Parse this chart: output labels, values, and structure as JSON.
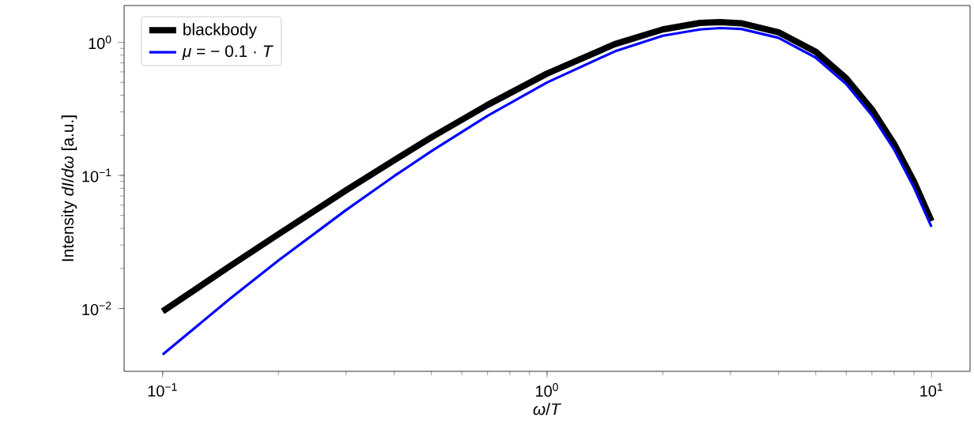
{
  "chart_data": {
    "type": "line",
    "xlabel": "*ω*/*T*",
    "ylabel": "Intensity *dI*/*dω* [a.u.]",
    "log": "xy",
    "grid": false,
    "legend": "top left",
    "x": [
      0.1,
      0.15,
      0.2,
      0.3,
      0.4,
      0.5,
      0.7,
      1,
      1.5,
      2,
      2.5,
      2.82,
      3.2,
      4,
      5,
      6,
      7,
      8,
      9,
      10
    ],
    "series": [
      {
        "name": "blackbody",
        "color": "#000000",
        "values": [
          0.0095,
          0.0209,
          0.0361,
          0.0772,
          0.13,
          0.193,
          0.338,
          0.582,
          0.969,
          1.25,
          1.4,
          1.42,
          1.39,
          1.19,
          0.848,
          0.537,
          0.313,
          0.172,
          0.09,
          0.0454
        ]
      },
      {
        "name": "*μ* = − 0.1 · *T*",
        "color": "#0000ff",
        "values": [
          0.0045,
          0.0119,
          0.0229,
          0.0549,
          0.0987,
          0.152,
          0.28,
          0.499,
          0.854,
          1.12,
          1.25,
          1.28,
          1.26,
          1.08,
          0.767,
          0.486,
          0.283,
          0.156,
          0.0814,
          0.0411
        ]
      }
    ],
    "xlim": [
      0.0794,
      12.6
    ],
    "ylim": [
      0.00337,
      1.89
    ],
    "xticks": [
      {
        "value": 0.1,
        "label": "10$^{−1}$"
      },
      {
        "value": 1,
        "label": "10$^{0}$"
      },
      {
        "value": 10,
        "label": "10$^{1}$"
      }
    ],
    "yticks": [
      {
        "value": 0.01,
        "label": "10$^{−2}$"
      },
      {
        "value": 0.1,
        "label": "10$^{−1}$"
      },
      {
        "value": 1,
        "label": "10$^{0}$"
      }
    ]
  }
}
